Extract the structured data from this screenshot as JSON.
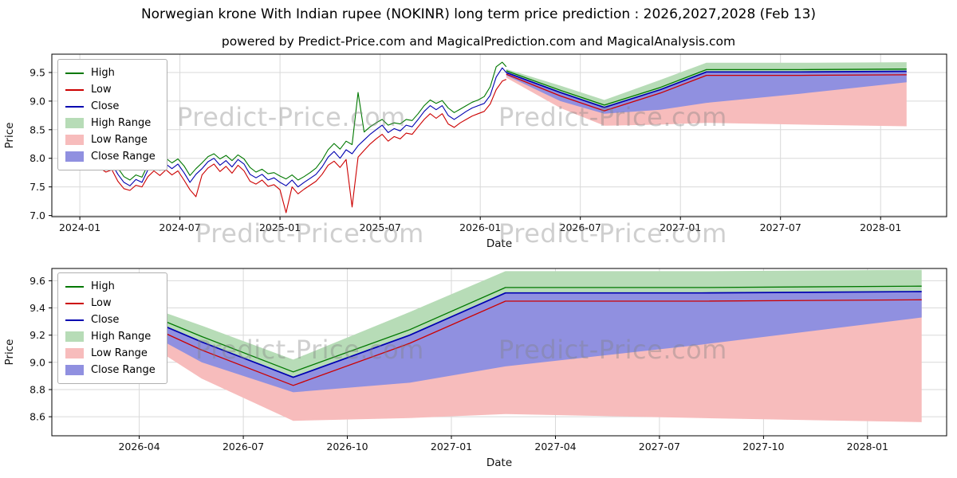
{
  "page": {
    "title": "Norwegian krone With Indian rupee (NOKINR) long term price prediction : 2026,2027,2028 (Feb 13)",
    "subtitle": "powered by Predict-Price.com and MagicalPrediction.com and MagicalAnalysis.com",
    "watermark_text": "Predict-Price.com"
  },
  "colors": {
    "high": "#007800",
    "low": "#cc0000",
    "close": "#0000b0",
    "high_range": "#b7dcb7",
    "low_range": "#f7bcbc",
    "close_range": "#9090e0",
    "grid": "#d9d9d9",
    "axis": "#000000",
    "tick_text": "#111111"
  },
  "legend": {
    "items": [
      {
        "label": "High",
        "swatch": "line",
        "color_key": "high"
      },
      {
        "label": "Low",
        "swatch": "line",
        "color_key": "low"
      },
      {
        "label": "Close",
        "swatch": "line",
        "color_key": "close"
      },
      {
        "label": "High Range",
        "swatch": "patch",
        "color_key": "high_range"
      },
      {
        "label": "Low Range",
        "swatch": "patch",
        "color_key": "low_range"
      },
      {
        "label": "Close Range",
        "swatch": "patch",
        "color_key": "close_range"
      }
    ]
  },
  "chart_data": [
    {
      "type": "line",
      "name": "long-term-history-and-prediction",
      "xlabel": "Date",
      "ylabel": "Price",
      "xlim": [
        2023.86,
        2028.33
      ],
      "ylim": [
        6.98,
        9.82
      ],
      "grid": true,
      "legend_position": "upper-left",
      "xticks": [
        {
          "v": 2024.0,
          "label": "2024-01"
        },
        {
          "v": 2024.5,
          "label": "2024-07"
        },
        {
          "v": 2025.0,
          "label": "2025-01"
        },
        {
          "v": 2025.5,
          "label": "2025-07"
        },
        {
          "v": 2026.0,
          "label": "2026-01"
        },
        {
          "v": 2026.5,
          "label": "2026-07"
        },
        {
          "v": 2027.0,
          "label": "2027-01"
        },
        {
          "v": 2027.5,
          "label": "2027-07"
        },
        {
          "v": 2028.0,
          "label": "2028-01"
        }
      ],
      "yticks": [
        {
          "v": 7.0,
          "label": "7.0"
        },
        {
          "v": 7.5,
          "label": "7.5"
        },
        {
          "v": 8.0,
          "label": "8.0"
        },
        {
          "v": 8.5,
          "label": "8.5"
        },
        {
          "v": 9.0,
          "label": "9.0"
        },
        {
          "v": 9.5,
          "label": "9.5"
        }
      ],
      "history": {
        "dates": [
          2024.1,
          2024.13,
          2024.16,
          2024.19,
          2024.22,
          2024.25,
          2024.28,
          2024.31,
          2024.34,
          2024.37,
          2024.4,
          2024.43,
          2024.46,
          2024.49,
          2024.52,
          2024.55,
          2024.58,
          2024.61,
          2024.64,
          2024.67,
          2024.7,
          2024.73,
          2024.76,
          2024.79,
          2024.82,
          2024.85,
          2024.88,
          2024.91,
          2024.94,
          2024.97,
          2025.0,
          2025.03,
          2025.06,
          2025.09,
          2025.12,
          2025.15,
          2025.18,
          2025.21,
          2025.24,
          2025.27,
          2025.3,
          2025.33,
          2025.36,
          2025.39,
          2025.42,
          2025.45,
          2025.48,
          2025.51,
          2025.54,
          2025.57,
          2025.6,
          2025.63,
          2025.66,
          2025.69,
          2025.72,
          2025.75,
          2025.78,
          2025.81,
          2025.84,
          2025.87,
          2025.9,
          2025.93,
          2025.96,
          2025.99,
          2026.02,
          2026.05,
          2026.08,
          2026.11,
          2026.13
        ],
        "high": [
          7.99,
          7.93,
          7.97,
          7.83,
          7.68,
          7.62,
          7.71,
          7.67,
          7.89,
          7.96,
          7.88,
          8.0,
          7.92,
          7.99,
          7.87,
          7.7,
          7.82,
          7.92,
          8.03,
          8.08,
          7.99,
          8.05,
          7.96,
          8.06,
          7.99,
          7.84,
          7.76,
          7.81,
          7.73,
          7.75,
          7.69,
          7.64,
          7.71,
          7.62,
          7.68,
          7.75,
          7.83,
          7.97,
          8.15,
          8.26,
          8.16,
          8.3,
          8.24,
          9.15,
          8.46,
          8.55,
          8.62,
          8.68,
          8.58,
          8.62,
          8.6,
          8.68,
          8.66,
          8.78,
          8.92,
          9.02,
          8.96,
          9.01,
          8.88,
          8.8,
          8.86,
          8.92,
          8.98,
          9.02,
          9.08,
          9.25,
          9.6,
          9.68,
          9.6
        ],
        "low": [
          7.83,
          7.76,
          7.8,
          7.6,
          7.47,
          7.44,
          7.53,
          7.5,
          7.68,
          7.78,
          7.7,
          7.8,
          7.71,
          7.78,
          7.62,
          7.45,
          7.33,
          7.71,
          7.83,
          7.9,
          7.77,
          7.86,
          7.74,
          7.88,
          7.78,
          7.6,
          7.55,
          7.62,
          7.51,
          7.54,
          7.45,
          7.05,
          7.5,
          7.38,
          7.46,
          7.53,
          7.6,
          7.72,
          7.88,
          7.95,
          7.84,
          7.98,
          7.15,
          8.02,
          8.14,
          8.25,
          8.34,
          8.42,
          8.3,
          8.38,
          8.34,
          8.44,
          8.42,
          8.55,
          8.68,
          8.78,
          8.7,
          8.78,
          8.6,
          8.54,
          8.62,
          8.68,
          8.74,
          8.78,
          8.82,
          8.95,
          9.2,
          9.35,
          9.38
        ],
        "close": [
          7.92,
          7.84,
          7.9,
          7.72,
          7.58,
          7.52,
          7.63,
          7.58,
          7.8,
          7.88,
          7.79,
          7.9,
          7.82,
          7.9,
          7.75,
          7.58,
          7.72,
          7.82,
          7.94,
          8.0,
          7.88,
          7.96,
          7.85,
          7.98,
          7.9,
          7.72,
          7.66,
          7.72,
          7.62,
          7.66,
          7.58,
          7.52,
          7.62,
          7.5,
          7.58,
          7.65,
          7.72,
          7.85,
          8.02,
          8.12,
          8.0,
          8.15,
          8.08,
          8.22,
          8.32,
          8.42,
          8.5,
          8.58,
          8.45,
          8.52,
          8.48,
          8.58,
          8.55,
          8.68,
          8.82,
          8.92,
          8.85,
          8.92,
          8.75,
          8.68,
          8.75,
          8.82,
          8.88,
          8.92,
          8.96,
          9.1,
          9.42,
          9.58,
          9.5
        ]
      },
      "prediction": {
        "dates": [
          2026.13,
          2026.4,
          2026.62,
          2026.9,
          2027.13,
          2027.6,
          2028.13
        ],
        "high": [
          9.53,
          9.19,
          8.93,
          9.24,
          9.55,
          9.55,
          9.56
        ],
        "low": [
          9.47,
          9.09,
          8.83,
          9.14,
          9.45,
          9.45,
          9.46
        ],
        "close": [
          9.5,
          9.15,
          8.89,
          9.2,
          9.51,
          9.51,
          9.52
        ],
        "high_range_top": [
          9.56,
          9.27,
          9.02,
          9.37,
          9.67,
          9.67,
          9.68
        ],
        "close_range_bottom": [
          9.45,
          9.0,
          8.78,
          8.85,
          8.97,
          9.13,
          9.33
        ],
        "low_range_bottom": [
          9.41,
          8.88,
          8.57,
          8.59,
          8.62,
          8.59,
          8.56
        ]
      }
    },
    {
      "type": "line",
      "name": "prediction-zoom",
      "xlabel": "Date",
      "ylabel": "Price",
      "xlim": [
        2026.04,
        2028.19
      ],
      "ylim": [
        8.46,
        9.69
      ],
      "grid": true,
      "legend_position": "upper-left",
      "xticks": [
        {
          "v": 2026.25,
          "label": "2026-04"
        },
        {
          "v": 2026.5,
          "label": "2026-07"
        },
        {
          "v": 2026.75,
          "label": "2026-10"
        },
        {
          "v": 2027.0,
          "label": "2027-01"
        },
        {
          "v": 2027.25,
          "label": "2027-04"
        },
        {
          "v": 2027.5,
          "label": "2027-07"
        },
        {
          "v": 2027.75,
          "label": "2027-10"
        },
        {
          "v": 2028.0,
          "label": "2028-01"
        }
      ],
      "yticks": [
        {
          "v": 8.6,
          "label": "8.6"
        },
        {
          "v": 8.8,
          "label": "8.8"
        },
        {
          "v": 9.0,
          "label": "9.0"
        },
        {
          "v": 9.2,
          "label": "9.2"
        },
        {
          "v": 9.4,
          "label": "9.4"
        },
        {
          "v": 9.6,
          "label": "9.6"
        }
      ],
      "prediction": {
        "dates": [
          2026.13,
          2026.4,
          2026.62,
          2026.9,
          2027.13,
          2027.6,
          2028.13
        ],
        "high": [
          9.53,
          9.19,
          8.93,
          9.24,
          9.55,
          9.55,
          9.56
        ],
        "low": [
          9.47,
          9.09,
          8.83,
          9.14,
          9.45,
          9.45,
          9.46
        ],
        "close": [
          9.5,
          9.15,
          8.89,
          9.2,
          9.51,
          9.51,
          9.52
        ],
        "high_range_top": [
          9.56,
          9.27,
          9.02,
          9.37,
          9.67,
          9.67,
          9.68
        ],
        "close_range_bottom": [
          9.45,
          9.0,
          8.78,
          8.85,
          8.97,
          9.13,
          9.33
        ],
        "low_range_bottom": [
          9.41,
          8.88,
          8.57,
          8.59,
          8.62,
          8.59,
          8.56
        ]
      }
    }
  ]
}
